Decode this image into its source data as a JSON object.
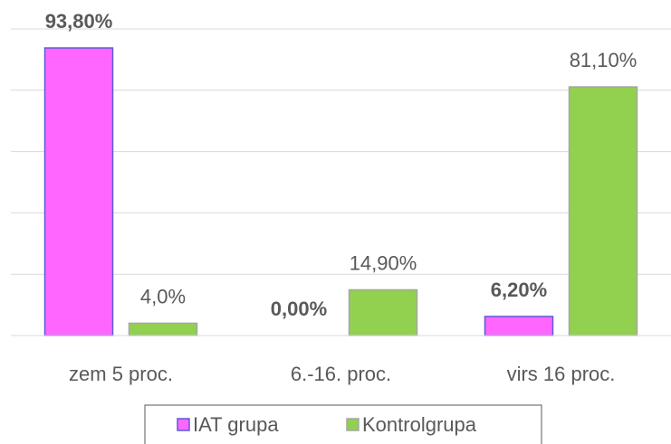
{
  "chart_data": {
    "type": "bar",
    "categories": [
      "zem 5 proc.",
      "6.-16. proc.",
      "virs 16 proc."
    ],
    "series": [
      {
        "name": "IAT grupa",
        "color": "#ff66ff",
        "values": [
          93.8,
          0,
          6.2
        ],
        "value_labels": [
          "93,80%",
          "0,00%",
          "6,20%"
        ]
      },
      {
        "name": "Kontrolgrupa",
        "color": "#92d050",
        "values": [
          4.0,
          14.9,
          81.1
        ],
        "value_labels": [
          "4,0%",
          "14,90%",
          "81,10%"
        ]
      }
    ],
    "ylim": [
      0,
      100
    ],
    "yticks": [
      0,
      20,
      40,
      60,
      80,
      100
    ],
    "grid": true,
    "legend": "bottom"
  }
}
